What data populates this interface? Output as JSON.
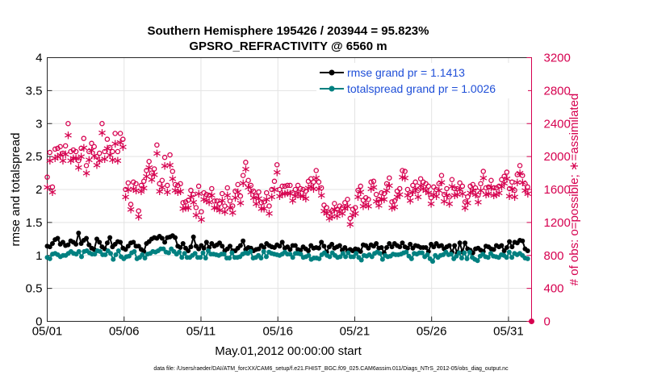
{
  "chart_data": {
    "type": "line",
    "title_line1": "Southern Hemisphere 195426 / 203944 = 95.823%",
    "title_line2": "GPSRO_REFRACTIVITY @ 6560 m",
    "xlabel": "May.01,2012 00:00:00 start",
    "ylabel": "rmse and totalspread",
    "y2label": "# of obs: o=possible; ∗=assimilated",
    "footnote": "data file: /Users/raeder/DAI/ATM_forcXX/CAM6_setup/f.e21.FHIST_BGC.f09_025.CAM6assim.011/Diags_NTrS_2012-05/obs_diag_output.nc",
    "xlim": [
      1,
      32.5
    ],
    "ylim": [
      0,
      4
    ],
    "y2lim": [
      0,
      3200
    ],
    "xtick_values": [
      1,
      6,
      11,
      16,
      21,
      26,
      31
    ],
    "xtick_labels": [
      "05/01",
      "05/06",
      "05/11",
      "05/16",
      "05/21",
      "05/26",
      "05/31"
    ],
    "ytick_values": [
      0,
      0.5,
      1,
      1.5,
      2,
      2.5,
      3,
      3.5,
      4
    ],
    "ytick_labels": [
      "0",
      "0.5",
      "1",
      "1.5",
      "2",
      "2.5",
      "3",
      "3.5",
      "4"
    ],
    "y2tick_values": [
      0,
      400,
      800,
      1200,
      1600,
      2000,
      2400,
      2800,
      3200
    ],
    "y2tick_labels": [
      "0",
      "400",
      "800",
      "1200",
      "1600",
      "2000",
      "2400",
      "2800",
      "3200"
    ],
    "legend_position": "top-right",
    "series": [
      {
        "name": "rmse grand pr = 1.1413",
        "axis": "left",
        "color": "#000000",
        "marker": "circle",
        "values": [
          1.14,
          1.13,
          1.18,
          1.24,
          1.26,
          1.17,
          1.2,
          1.15,
          1.16,
          1.22,
          1.2,
          1.17,
          1.34,
          1.18,
          1.23,
          1.26,
          1.16,
          1.11,
          1.09,
          1.25,
          1.2,
          1.13,
          1.1,
          1.19,
          1.27,
          1.13,
          1.17,
          1.21,
          1.2,
          1.11,
          1.09,
          1.14,
          1.19,
          1.2,
          1.14,
          1.14,
          1.09,
          1.06,
          1.18,
          1.21,
          1.25,
          1.27,
          1.26,
          1.29,
          1.26,
          1.2,
          1.27,
          1.28,
          1.3,
          1.27,
          1.14,
          1.12,
          1.18,
          1.11,
          1.07,
          1.13,
          1.28,
          1.14,
          1.1,
          1.15,
          1.11,
          1.2,
          1.12,
          1.18,
          1.14,
          1.16,
          1.19,
          1.14,
          1.07,
          1.1,
          1.14,
          1.07,
          1.07,
          1.11,
          1.15,
          1.22,
          1.09,
          1.12,
          1.11,
          1.07,
          1.09,
          1.1,
          1.15,
          1.12,
          1.18,
          1.15,
          1.13,
          1.12,
          1.16,
          1.14,
          1.2,
          1.11,
          1.13,
          1.09,
          1.15,
          1.15,
          1.09,
          1.08,
          1.13,
          1.1,
          1.07,
          1.15,
          1.11,
          1.12,
          1.11,
          1.2,
          1.14,
          1.05,
          1.13,
          1.17,
          1.11,
          1.13,
          1.15,
          1.08,
          1.12,
          1.07,
          1.09,
          1.07,
          1.1,
          1.09,
          1.06,
          1.16,
          1.15,
          1.11,
          1.16,
          1.14,
          1.18,
          1.11,
          1.12,
          1.04,
          1.12,
          1.18,
          1.13,
          1.18,
          1.15,
          1.13,
          1.19,
          1.13,
          1.11,
          1.17,
          1.11,
          1.15,
          1.14,
          1.12,
          1.12,
          1.12,
          1.06,
          1.17,
          1.13,
          1.18,
          1.14,
          1.15,
          1.1,
          1.13,
          1.15,
          1.05,
          1.15,
          1.03,
          1.19,
          1.05,
          1.19,
          1.1,
          1.08,
          1.04,
          1.1,
          1.11,
          1.08,
          1.06,
          1.14,
          1.13,
          1.1,
          1.09,
          1.15,
          1.13,
          1.15,
          1.07,
          1.12,
          1.21,
          1.13,
          1.2,
          1.19,
          1.23,
          1.22,
          1.1,
          1.07
        ]
      },
      {
        "name": "totalspread grand pr = 1.0026",
        "axis": "left",
        "color": "#008080",
        "marker": "circle",
        "values": [
          0.97,
          0.95,
          1.02,
          1.03,
          1.01,
          0.98,
          1.0,
          1.0,
          1.03,
          1.06,
          1.03,
          1.02,
          1.06,
          0.98,
          1.06,
          1.07,
          1.04,
          1.02,
          1.02,
          1.07,
          1.06,
          1.01,
          1.01,
          1.07,
          1.03,
          0.94,
          1.01,
          1.07,
          0.98,
          0.95,
          0.98,
          0.99,
          1.04,
          1.06,
          0.95,
          0.97,
          1.01,
          0.96,
          1.02,
          1.03,
          1.06,
          1.05,
          1.07,
          1.1,
          1.1,
          1.05,
          1.04,
          1.1,
          1.06,
          1.02,
          1.05,
          0.97,
          1.03,
          0.97,
          0.97,
          1.0,
          1.03,
          0.97,
          0.97,
          1.04,
          0.96,
          1.07,
          1.02,
          1.02,
          1.01,
          1.0,
          1.02,
          1.02,
          0.96,
          0.96,
          1.04,
          0.97,
          0.97,
          0.98,
          1.02,
          1.04,
          1.03,
          1.06,
          0.96,
          0.97,
          1.0,
          0.96,
          1.06,
          0.98,
          1.05,
          1.03,
          1.02,
          1.01,
          1.0,
          1.02,
          1.05,
          1.02,
          1.02,
          0.97,
          1.03,
          1.03,
          1.02,
          0.97,
          0.98,
          1.0,
          0.94,
          0.96,
          0.96,
          0.95,
          1.01,
          1.04,
          1.0,
          0.98,
          1.04,
          1.0,
          0.97,
          0.98,
          1.03,
          0.98,
          1.04,
          0.98,
          0.98,
          1.03,
          0.97,
          0.93,
          1.0,
          0.99,
          1.01,
          0.98,
          1.03,
          1.05,
          1.03,
          0.94,
          1.0,
          0.98,
          0.99,
          1.02,
          1.01,
          1.01,
          1.02,
          1.04,
          1.05,
          0.99,
          0.95,
          1.03,
          1.02,
          1.04,
          1.04,
          0.98,
          1.01,
          0.95,
          0.91,
          1.0,
          0.97,
          1.0,
          1.01,
          1.05,
          1.01,
          1.02,
          0.95,
          0.99,
          1.04,
          0.96,
          1.04,
          0.95,
          1.05,
          0.97,
          0.94,
          0.92,
          0.99,
          1.02,
          0.98,
          0.97,
          1.03,
          0.99,
          0.98,
          0.97,
          1.01,
          1.0,
          0.97,
          1.05,
          0.97,
          1.03,
          1.01,
          1.03,
          1.0,
          0.96,
          0.95
        ]
      },
      {
        "name": "# of obs possible",
        "axis": "right",
        "color": "#d6004f",
        "marker": "o",
        "values": [
          1750,
          2050,
          1630,
          2090,
          2100,
          2120,
          2040,
          2130,
          2400,
          2060,
          2080,
          2060,
          1950,
          2100,
          2220,
          1890,
          2060,
          2160,
          2120,
          2000,
          2040,
          2400,
          2060,
          2210,
          2110,
          2060,
          2280,
          2060,
          2280,
          2210,
          1600,
          1680,
          1420,
          1690,
          1670,
          1340,
          1650,
          1700,
          1830,
          1940,
          1800,
          1850,
          2140,
          1670,
          1710,
          1990,
          1650,
          2020,
          1820,
          1660,
          1650,
          1670,
          1440,
          1450,
          1470,
          1590,
          1540,
          1380,
          1640,
          1330,
          1560,
          1540,
          1530,
          1610,
          1460,
          1460,
          1430,
          1550,
          1400,
          1620,
          1460,
          1400,
          1580,
          1660,
          1520,
          1770,
          1930,
          1710,
          1650,
          1580,
          1520,
          1570,
          1440,
          1450,
          1560,
          1400,
          1600,
          1700,
          1900,
          1600,
          1640,
          1640,
          1650,
          1650,
          1560,
          1600,
          1650,
          1610,
          1600,
          1580,
          1700,
          1730,
          1690,
          1830,
          1690,
          1620,
          1410,
          1380,
          1320,
          1340,
          1430,
          1360,
          1400,
          1380,
          1440,
          1480,
          1250,
          1360,
          1380,
          1590,
          1640,
          1470,
          1500,
          1480,
          1690,
          1700,
          1540,
          1480,
          1560,
          1550,
          1670,
          1740,
          1450,
          1460,
          1580,
          1610,
          1830,
          1820,
          1600,
          1540,
          1650,
          1690,
          1590,
          1730,
          1690,
          1670,
          1640,
          1500,
          1630,
          1600,
          1670,
          1770,
          1540,
          1610,
          1510,
          1720,
          1610,
          1610,
          1680,
          1640,
          1450,
          1510,
          1640,
          1660,
          1620,
          1530,
          1670,
          1820,
          1620,
          1630,
          1710,
          1620,
          1620,
          1640,
          1720,
          1760,
          1810,
          1610,
          1690,
          1590,
          1780,
          1890,
          1770,
          1670,
          1630
        ]
      },
      {
        "name": "# of obs assimilated",
        "axis": "right",
        "color": "#d6004f",
        "marker": "*",
        "values": [
          1640,
          1960,
          1580,
          1990,
          2010,
          2030,
          1960,
          2040,
          2270,
          1960,
          1990,
          1990,
          1880,
          2010,
          2120,
          1810,
          1970,
          2090,
          2020,
          1910,
          1960,
          2300,
          1980,
          2110,
          2030,
          1970,
          2170,
          1960,
          2180,
          2130,
          1520,
          1610,
          1370,
          1620,
          1600,
          1280,
          1590,
          1630,
          1770,
          1880,
          1730,
          1790,
          2050,
          1590,
          1640,
          1900,
          1580,
          1910,
          1740,
          1600,
          1580,
          1590,
          1380,
          1390,
          1390,
          1520,
          1460,
          1300,
          1560,
          1250,
          1490,
          1480,
          1460,
          1540,
          1390,
          1390,
          1360,
          1480,
          1340,
          1540,
          1390,
          1330,
          1510,
          1580,
          1450,
          1690,
          1860,
          1640,
          1580,
          1510,
          1440,
          1500,
          1380,
          1380,
          1490,
          1320,
          1520,
          1610,
          1820,
          1530,
          1560,
          1560,
          1570,
          1560,
          1480,
          1530,
          1570,
          1530,
          1530,
          1500,
          1630,
          1650,
          1620,
          1750,
          1620,
          1540,
          1350,
          1320,
          1260,
          1280,
          1370,
          1290,
          1340,
          1320,
          1380,
          1410,
          1190,
          1300,
          1320,
          1520,
          1580,
          1410,
          1430,
          1410,
          1620,
          1640,
          1470,
          1420,
          1490,
          1490,
          1600,
          1660,
          1390,
          1400,
          1520,
          1550,
          1760,
          1750,
          1540,
          1480,
          1580,
          1620,
          1520,
          1660,
          1620,
          1600,
          1570,
          1440,
          1550,
          1530,
          1600,
          1700,
          1470,
          1540,
          1440,
          1650,
          1540,
          1550,
          1610,
          1560,
          1390,
          1450,
          1570,
          1600,
          1550,
          1460,
          1600,
          1750,
          1550,
          1560,
          1640,
          1540,
          1550,
          1570,
          1650,
          1690,
          1740,
          1530,
          1620,
          1520,
          1700,
          1810,
          1700,
          1600,
          1560
        ]
      }
    ]
  }
}
